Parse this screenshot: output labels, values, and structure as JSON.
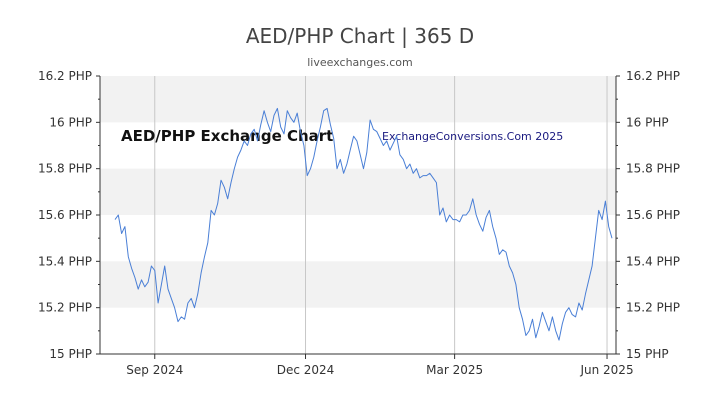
{
  "title": "AED/PHP Chart | 365 D",
  "subtitle": "liveexchanges.com",
  "watermarks": {
    "left": "AED/PHP Exchange Chart",
    "right": "ExchangeConversions.Com 2025"
  },
  "colors": {
    "line": "#4a7fd6",
    "band": "#f2f2f2",
    "grid": "#c8c8c8",
    "axis": "#333333"
  },
  "chart_data": {
    "type": "line",
    "title": "AED/PHP Chart | 365 D",
    "xlabel": "",
    "ylabel": "",
    "ylim": [
      15,
      16.2
    ],
    "grid": true,
    "y_ticks": [
      {
        "value": 16.2,
        "label": "16.2 PHP"
      },
      {
        "value": 16.0,
        "label": "16 PHP"
      },
      {
        "value": 15.8,
        "label": "15.8 PHP"
      },
      {
        "value": 15.6,
        "label": "15.6 PHP"
      },
      {
        "value": 15.4,
        "label": "15.4 PHP"
      },
      {
        "value": 15.2,
        "label": "15.2 PHP"
      },
      {
        "value": 15.0,
        "label": "15 PHP"
      }
    ],
    "x_ticks": [
      {
        "label": "Sep 2024",
        "index": 24
      },
      {
        "label": "Dec 2024",
        "index": 115
      },
      {
        "label": "Mar 2025",
        "index": 205
      },
      {
        "label": "Jun 2025",
        "index": 297
      }
    ],
    "series": [
      {
        "values": [
          [
            0,
            15.58
          ],
          [
            2,
            15.6
          ],
          [
            4,
            15.52
          ],
          [
            6,
            15.55
          ],
          [
            8,
            15.42
          ],
          [
            10,
            15.37
          ],
          [
            12,
            15.33
          ],
          [
            14,
            15.28
          ],
          [
            16,
            15.32
          ],
          [
            18,
            15.29
          ],
          [
            20,
            15.31
          ],
          [
            22,
            15.38
          ],
          [
            24,
            15.36
          ],
          [
            26,
            15.22
          ],
          [
            28,
            15.3
          ],
          [
            30,
            15.38
          ],
          [
            32,
            15.28
          ],
          [
            34,
            15.24
          ],
          [
            36,
            15.2
          ],
          [
            38,
            15.14
          ],
          [
            40,
            15.16
          ],
          [
            42,
            15.15
          ],
          [
            44,
            15.22
          ],
          [
            46,
            15.24
          ],
          [
            48,
            15.2
          ],
          [
            50,
            15.26
          ],
          [
            52,
            15.35
          ],
          [
            54,
            15.42
          ],
          [
            56,
            15.48
          ],
          [
            58,
            15.62
          ],
          [
            60,
            15.6
          ],
          [
            62,
            15.65
          ],
          [
            64,
            15.75
          ],
          [
            66,
            15.72
          ],
          [
            68,
            15.67
          ],
          [
            70,
            15.74
          ],
          [
            72,
            15.8
          ],
          [
            74,
            15.85
          ],
          [
            76,
            15.88
          ],
          [
            78,
            15.92
          ],
          [
            80,
            15.9
          ],
          [
            82,
            15.95
          ],
          [
            84,
            15.97
          ],
          [
            86,
            15.92
          ],
          [
            88,
            15.99
          ],
          [
            90,
            16.05
          ],
          [
            92,
            16.0
          ],
          [
            94,
            15.96
          ],
          [
            96,
            16.03
          ],
          [
            98,
            16.06
          ],
          [
            100,
            15.98
          ],
          [
            102,
            15.95
          ],
          [
            104,
            16.05
          ],
          [
            106,
            16.02
          ],
          [
            108,
            16.0
          ],
          [
            110,
            16.04
          ],
          [
            112,
            15.96
          ],
          [
            114,
            15.9
          ],
          [
            116,
            15.77
          ],
          [
            118,
            15.8
          ],
          [
            120,
            15.85
          ],
          [
            122,
            15.92
          ],
          [
            124,
            15.98
          ],
          [
            126,
            16.05
          ],
          [
            128,
            16.06
          ],
          [
            130,
            15.99
          ],
          [
            132,
            15.93
          ],
          [
            134,
            15.8
          ],
          [
            136,
            15.84
          ],
          [
            138,
            15.78
          ],
          [
            140,
            15.82
          ],
          [
            142,
            15.88
          ],
          [
            144,
            15.94
          ],
          [
            146,
            15.92
          ],
          [
            148,
            15.86
          ],
          [
            150,
            15.8
          ],
          [
            152,
            15.87
          ],
          [
            154,
            16.01
          ],
          [
            156,
            15.97
          ],
          [
            158,
            15.96
          ],
          [
            160,
            15.93
          ],
          [
            162,
            15.9
          ],
          [
            164,
            15.92
          ],
          [
            166,
            15.88
          ],
          [
            168,
            15.91
          ],
          [
            170,
            15.94
          ],
          [
            172,
            15.86
          ],
          [
            174,
            15.84
          ],
          [
            176,
            15.8
          ],
          [
            178,
            15.82
          ],
          [
            180,
            15.78
          ],
          [
            182,
            15.8
          ],
          [
            184,
            15.76
          ],
          [
            186,
            15.77
          ],
          [
            188,
            15.77
          ],
          [
            190,
            15.78
          ],
          [
            192,
            15.76
          ],
          [
            194,
            15.74
          ],
          [
            196,
            15.6
          ],
          [
            198,
            15.63
          ],
          [
            200,
            15.57
          ],
          [
            202,
            15.6
          ],
          [
            204,
            15.58
          ],
          [
            206,
            15.58
          ],
          [
            208,
            15.57
          ],
          [
            210,
            15.6
          ],
          [
            212,
            15.6
          ],
          [
            214,
            15.62
          ],
          [
            216,
            15.67
          ],
          [
            218,
            15.6
          ],
          [
            220,
            15.56
          ],
          [
            222,
            15.53
          ],
          [
            224,
            15.59
          ],
          [
            226,
            15.62
          ],
          [
            228,
            15.55
          ],
          [
            230,
            15.5
          ],
          [
            232,
            15.43
          ],
          [
            234,
            15.45
          ],
          [
            236,
            15.44
          ],
          [
            238,
            15.38
          ],
          [
            240,
            15.35
          ],
          [
            242,
            15.3
          ],
          [
            244,
            15.2
          ],
          [
            246,
            15.15
          ],
          [
            248,
            15.08
          ],
          [
            250,
            15.1
          ],
          [
            252,
            15.15
          ],
          [
            254,
            15.07
          ],
          [
            256,
            15.12
          ],
          [
            258,
            15.18
          ],
          [
            260,
            15.14
          ],
          [
            262,
            15.1
          ],
          [
            264,
            15.16
          ],
          [
            266,
            15.1
          ],
          [
            268,
            15.06
          ],
          [
            270,
            15.13
          ],
          [
            272,
            15.18
          ],
          [
            274,
            15.2
          ],
          [
            276,
            15.17
          ],
          [
            278,
            15.16
          ],
          [
            280,
            15.22
          ],
          [
            282,
            15.19
          ],
          [
            284,
            15.26
          ],
          [
            286,
            15.32
          ],
          [
            288,
            15.38
          ],
          [
            290,
            15.5
          ],
          [
            292,
            15.62
          ],
          [
            294,
            15.58
          ],
          [
            296,
            15.66
          ],
          [
            298,
            15.55
          ],
          [
            300,
            15.5
          ]
        ]
      }
    ]
  }
}
